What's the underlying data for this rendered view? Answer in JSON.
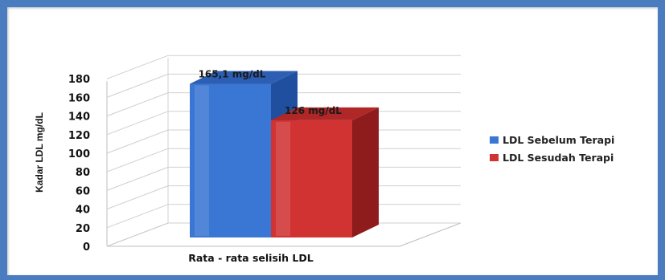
{
  "colors": {
    "frame": "#4a7cc0",
    "series_blue_front": "#3a76d4",
    "series_blue_side": "#1f4f9e",
    "series_blue_top": "#2c5fb4",
    "series_red_front": "#d13333",
    "series_red_side": "#8e1c1c",
    "series_red_top": "#b02727",
    "grid": "#cfcfcf"
  },
  "chart_data": {
    "type": "bar",
    "style": "3d-clustered-column",
    "title": "",
    "xlabel": "",
    "ylabel": "Kadar LDL mg/dL",
    "ylim": [
      0,
      180
    ],
    "yticks": [
      0,
      20,
      40,
      60,
      80,
      100,
      120,
      140,
      160,
      180
    ],
    "grid": true,
    "legend_position": "right",
    "categories": [
      "Rata - rata selisih LDL"
    ],
    "series": [
      {
        "name": "LDL Sebelum Terapi",
        "values": [
          165.1
        ],
        "data_label": "165,1 mg/dL",
        "color": "#3a76d4"
      },
      {
        "name": "LDL Sesudah Terapi",
        "values": [
          126
        ],
        "data_label": "126 mg/dL",
        "color": "#d13333"
      }
    ]
  }
}
